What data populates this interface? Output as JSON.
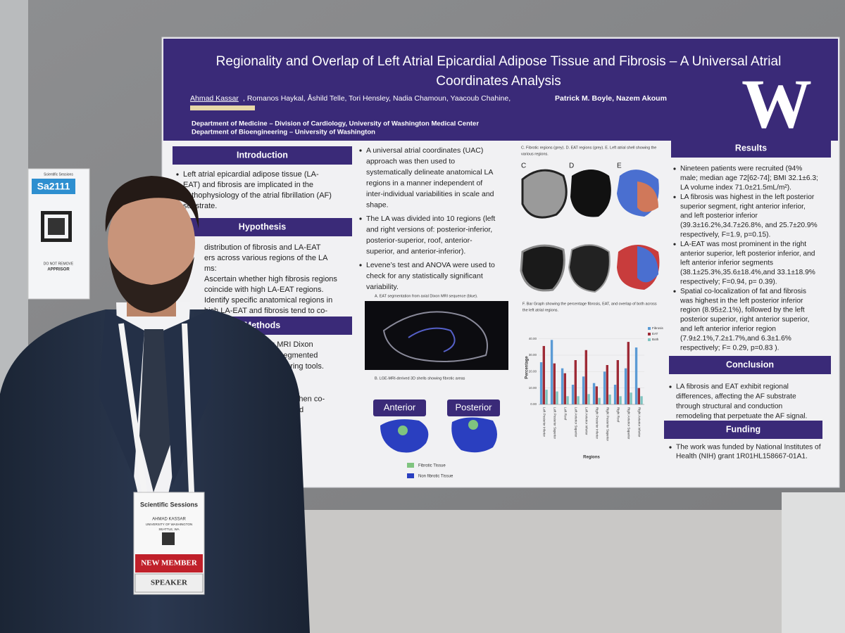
{
  "poster": {
    "title": [
      "Regionality and Overlap of Left Atrial Epicardial Adipose Tissue and Fibrosis – A Universal Atrial",
      "Coordinates Analysis"
    ],
    "authors_lead": "Ahmad Kassar",
    "authors_rest": ", Romanos Haykal, Åshild Telle, Tori Hensley, Nadia Chamoun, Yaacoub Chahine,",
    "authors_senior": "Patrick M. Boyle, Nazem Akoum",
    "affiliations": [
      "Department of Medicine – Division of Cardiology, University of Washington Medical Center",
      "Department of Bioengineering – University of Washington"
    ],
    "logo": "W",
    "introduction": {
      "heading": "Introduction",
      "lines": [
        "Left atrial epicardial adipose tissue (LA-",
        "EAT) and fibrosis are implicated in the",
        "pathophysiology of the atrial fibrillation (AF)",
        "substrate."
      ]
    },
    "hypothesis": {
      "heading": "Hypothesis",
      "lines": [
        "distribution of fibrosis and LA-EAT",
        "ers across various regions of the LA",
        "ms:",
        "Ascertain whether high fibrosis regions",
        "coincide with high LA-EAT regions.",
        "Identify specific anatomical regions in",
        "hich LA-EAT and fibrosis tend to co-"
      ]
    },
    "methods": {
      "heading": "Methods",
      "lines": [
        "sing MRI Dixon",
        "were segmented",
        "e contouring tools.",
        "A fibrosis",
        "entation.",
        "d fat were then co-",
        "eometry and",
        "l shell."
      ]
    },
    "middle": [
      [
        "A universal atrial coordinates (UAC)",
        "approach was then used to",
        "systematically delineate anatomical LA",
        "regions in a manner independent of",
        "inter-individual variabilities in scale and",
        "shape."
      ],
      [
        "The LA was divided into 10 regions (left",
        "and right versions of: posterior-inferior,",
        "posterior-superior, roof, anterior-",
        "superior, and anterior-inferior)."
      ],
      [
        "Levene’s test and ANOVA were used to",
        "check for any statistically significant",
        "variability."
      ]
    ],
    "figure_a_caption": "A. EAT segmentation from axial Dixon MRI sequence (blue).",
    "figure_b_caption": "B. LGE-MRI-derived 3D shells showing fibrotic areas",
    "view_labels": [
      "Anterior",
      "Posterior"
    ],
    "shell_legend": [
      "Fibrotic Tissue",
      "Non fibrotic Tissue"
    ],
    "figure_cde_caption": [
      "C. Fibrotic regions (grey). D. EAT regions (grey). E. Left atrial shell showing the",
      "various regions."
    ],
    "panel_labels": [
      "C",
      "D",
      "E"
    ],
    "figure_f_caption": [
      "F. Bar Graph showing the percentage fibrosis, EAT, and overlap of both across",
      "the left atrial regions."
    ],
    "results": {
      "heading": "Results",
      "items": [
        [
          "Nineteen patients were recruited (94%",
          "male; median age 72[62-74]; BMI 32.1±6.3;",
          "LA volume index 71.0±21.5mL/m²)."
        ],
        [
          "LA fibrosis was highest in the left posterior",
          "superior segment, right anterior inferior,",
          "and left posterior inferior",
          "(39.3±16.2%,34.7±26.8%, and 25.7±20.9%",
          "respectively, F=1.9, p=0.15)."
        ],
        [
          "LA-EAT was most prominent in the right",
          "anterior superior, left posterior inferior, and",
          "left anterior inferior segments",
          "(38.1±25.3%,35.6±18.4%,and 33.1±18.9%",
          "respectively; F=0.94, p= 0.39)."
        ],
        [
          "Spatial co-localization of fat and fibrosis",
          "was highest in the left posterior inferior",
          "region (8.95±2.1%), followed by the left",
          "posterior superior, right anterior superior,",
          "and left anterior inferior region",
          "(7.9±2.1%,7.2±1.7%,and 6.3±1.6%",
          "respectively; F= 0.29, p=0.83 )."
        ]
      ]
    },
    "conclusion": {
      "heading": "Conclusion",
      "lines": [
        "LA fibrosis and EAT exhibit regional",
        "differences, affecting the AF substrate",
        "through structural and conduction",
        "remodeling that perpetuate the AF signal."
      ]
    },
    "funding": {
      "heading": "Funding",
      "lines": [
        "The work was funded by National Institutes of",
        "Health (NIH) grant 1R01HL158667-01A1."
      ]
    }
  },
  "chart_data": {
    "type": "bar",
    "categories": [
      "Left Posterior Inferior",
      "Left Posterior Superior",
      "Left Roof",
      "Left Anterior Superior",
      "Left Anterior Inferior",
      "Right Posterior Inferior",
      "Right Posterior Superior",
      "Right Roof",
      "Right Anterior Superior",
      "Right Anterior Inferior"
    ],
    "series": [
      {
        "name": "Fibrosis",
        "color": "#5b9bd5",
        "values": [
          25.7,
          39.3,
          22,
          12,
          17,
          13,
          20,
          12,
          22,
          34.7
        ]
      },
      {
        "name": "EAT",
        "color": "#9e2a36",
        "values": [
          35.6,
          25,
          19,
          27,
          33.1,
          11,
          24,
          27,
          38.1,
          10
        ]
      },
      {
        "name": "Both",
        "color": "#7fc4c0",
        "values": [
          8.95,
          7.9,
          5,
          5,
          6.3,
          4,
          6,
          5,
          7.2,
          5
        ]
      }
    ],
    "ylim": [
      0,
      45
    ],
    "yticks": [
      {
        "value": 0,
        "label": "0.00"
      },
      {
        "value": 10,
        "label": "10.00"
      },
      {
        "value": 20,
        "label": "20.00"
      },
      {
        "value": 30,
        "label": "30.00"
      },
      {
        "value": 40,
        "label": "40.00"
      }
    ],
    "y_label": "Percentage",
    "x_label": "Regions"
  },
  "qr_card": {
    "brand": "Scientific Sessions",
    "code": "Sa2111",
    "note": "DO NOT REMOVE",
    "sponsor": "APPRISOR"
  },
  "badge": {
    "brand": "Scientific Sessions",
    "name": "AHMAD KASSAR",
    "affiliation": "UNIVERSITY OF WASHINGTON",
    "city": "SEATTLE, WA",
    "ribbons": [
      "NEW MEMBER",
      "SPEAKER"
    ]
  }
}
